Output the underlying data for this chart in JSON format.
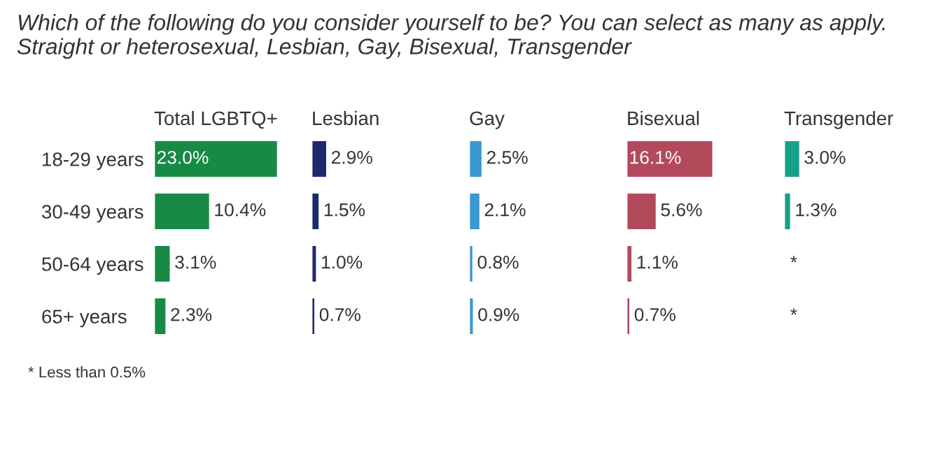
{
  "chart_data": [
    {
      "type": "bar",
      "orientation": "horizontal",
      "title": "Which of the following do you consider yourself to be? You can select as many as apply. Straight or heterosexual, Lesbian, Gay, Bisexual, Transgender",
      "categories": [
        "18-29 years",
        "30-49 years",
        "50-64 years",
        "65+ years"
      ],
      "tick_labels": "y",
      "annotations": [
        "* Less than 0.5%"
      ],
      "series": [
        {
          "name": "Total LGBTQ+",
          "color": "#178a45",
          "values": [
            23.0,
            10.4,
            3.1,
            2.3
          ],
          "value_labels": [
            "23.0%",
            "10.4%",
            "3.1%",
            "2.3%"
          ]
        }
      ]
    },
    {
      "type": "bar",
      "orientation": "horizontal",
      "categories": [
        null,
        null,
        null,
        null
      ],
      "tick_labels": false,
      "series": [
        {
          "name": "Lesbian",
          "color": "#1c2a6e",
          "values": [
            2.9,
            1.5,
            1.0,
            0.7
          ],
          "value_labels": [
            "2.9%",
            "1.5%",
            "1.0%",
            "0.7%"
          ]
        }
      ]
    },
    {
      "type": "bar",
      "orientation": "horizontal",
      "categories": [
        null,
        null,
        null,
        null
      ],
      "tick_labels": false,
      "series": [
        {
          "name": "Gay",
          "color": "#3a98d3",
          "values": [
            2.5,
            2.1,
            0.8,
            0.9
          ],
          "value_labels": [
            "2.5%",
            "2.1%",
            "0.8%",
            "0.9%"
          ]
        }
      ]
    },
    {
      "type": "bar",
      "orientation": "horizontal",
      "categories": [
        null,
        null,
        null,
        null
      ],
      "tick_labels": false,
      "series": [
        {
          "name": "Bisexual",
          "color": "#b34a5c",
          "values": [
            16.1,
            5.6,
            1.1,
            0.7
          ],
          "value_labels": [
            "16.1%",
            "5.6%",
            "1.1%",
            "0.7%"
          ]
        }
      ]
    },
    {
      "type": "bar",
      "orientation": "horizontal",
      "categories": [
        null,
        null,
        null,
        null
      ],
      "tick_labels": false,
      "series": [
        {
          "name": "Transgender",
          "color": "#15a089",
          "values": [
            3.0,
            1.3,
            null,
            null
          ],
          "value_labels": [
            "3.0%",
            "1.3%",
            "*",
            "*"
          ]
        }
      ]
    }
  ]
}
